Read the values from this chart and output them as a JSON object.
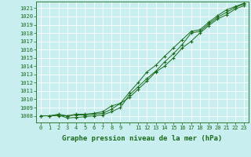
{
  "title": "Graphe pression niveau de la mer (hPa)",
  "background_color": "#c8eef0",
  "grid_color": "#b0d0d0",
  "line_color": "#1a6b1a",
  "x_labels": [
    "0",
    "1",
    "2",
    "3",
    "4",
    "5",
    "6",
    "7",
    "8",
    "9",
    "",
    "11",
    "12",
    "13",
    "14",
    "15",
    "16",
    "17",
    "18",
    "19",
    "20",
    "21",
    "22",
    "23"
  ],
  "xlim": [
    -0.5,
    23.5
  ],
  "ylim": [
    1007.2,
    1021.8
  ],
  "yticks": [
    1008,
    1009,
    1010,
    1011,
    1012,
    1013,
    1014,
    1015,
    1016,
    1017,
    1018,
    1019,
    1020,
    1021
  ],
  "line1": [
    1008.0,
    1008.0,
    1008.2,
    1008.0,
    1008.2,
    1008.2,
    1008.3,
    1008.5,
    1009.2,
    1009.5,
    1010.8,
    1012.0,
    1013.3,
    1014.1,
    1015.2,
    1016.2,
    1017.2,
    1018.2,
    1018.4,
    1019.3,
    1020.1,
    1020.8,
    1021.2,
    1021.6
  ],
  "line2": [
    1008.0,
    1008.0,
    1008.1,
    1007.75,
    1007.8,
    1007.9,
    1008.0,
    1008.1,
    1008.5,
    1009.0,
    1010.5,
    1011.5,
    1012.5,
    1013.4,
    1014.5,
    1015.5,
    1016.6,
    1018.0,
    1018.2,
    1019.1,
    1019.9,
    1020.5,
    1021.1,
    1021.5
  ],
  "line3": [
    1008.0,
    1008.0,
    1008.0,
    1008.0,
    1008.1,
    1008.1,
    1008.2,
    1008.3,
    1008.8,
    1009.5,
    1010.2,
    1011.2,
    1012.2,
    1013.3,
    1014.0,
    1015.0,
    1016.2,
    1017.0,
    1018.0,
    1018.9,
    1019.7,
    1020.2,
    1020.9,
    1021.3
  ],
  "ylabel_fontsize": 5,
  "xlabel_fontsize": 5,
  "title_fontsize": 6.5
}
